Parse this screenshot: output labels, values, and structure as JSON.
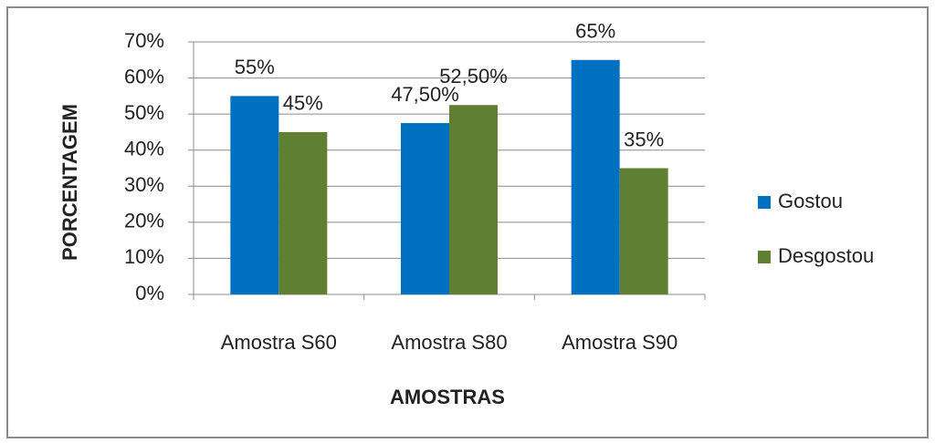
{
  "chart_data": {
    "type": "bar",
    "x_label": "AMOSTRAS",
    "y_label": "PORCENTAGEM",
    "categories": [
      "Amostra S60",
      "Amostra S80",
      "Amostra S90"
    ],
    "series": [
      {
        "name": "Gostou",
        "color": "#0070c0",
        "values": [
          55,
          47.5,
          65
        ],
        "value_labels": [
          "55%",
          "47,50%",
          "65%"
        ]
      },
      {
        "name": "Desgostou",
        "color": "#5f7f32",
        "values": [
          45,
          52.5,
          35
        ],
        "value_labels": [
          "45%",
          "52,50%",
          "35%"
        ]
      }
    ],
    "ylim": [
      0,
      70
    ],
    "yticks": [
      {
        "value": 0,
        "label": "0%"
      },
      {
        "value": 10,
        "label": "10%"
      },
      {
        "value": 20,
        "label": "20%"
      },
      {
        "value": 30,
        "label": "30%"
      },
      {
        "value": 40,
        "label": "40%"
      },
      {
        "value": 50,
        "label": "50%"
      },
      {
        "value": 60,
        "label": "60%"
      },
      {
        "value": 70,
        "label": "70%"
      }
    ],
    "grid": true,
    "legend": "right"
  }
}
